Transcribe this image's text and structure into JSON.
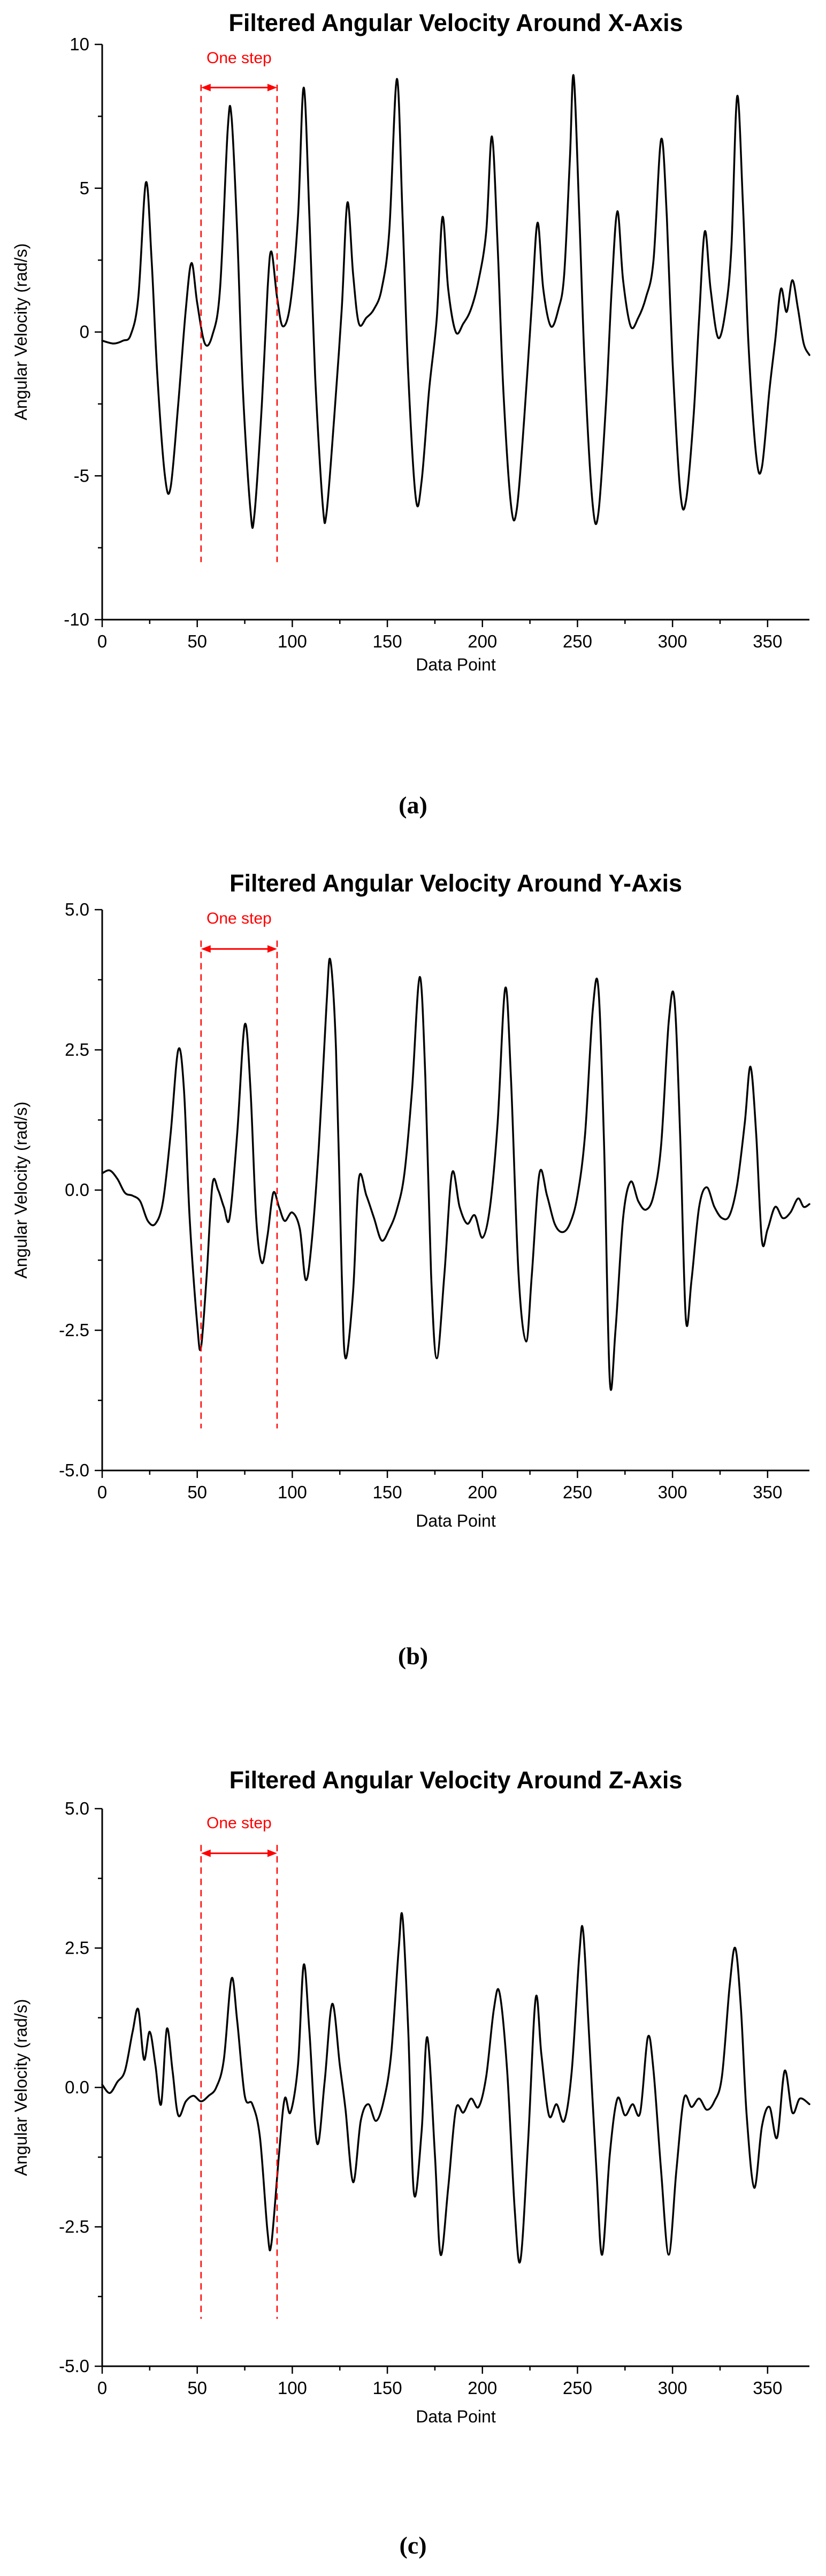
{
  "page": {
    "background": "#ffffff"
  },
  "colors": {
    "line": "#000000",
    "annotation": "#ff0000",
    "axis": "#000000"
  },
  "figures": [
    {
      "caption": "(a)"
    },
    {
      "caption": "(b)"
    },
    {
      "caption": "(c)"
    }
  ],
  "chart_data": [
    {
      "type": "line",
      "title": "Filtered Angular Velocity Around X-Axis",
      "xlabel": "Data Point",
      "ylabel": "Angular Velocity (rad/s)",
      "xlim": [
        0,
        372
      ],
      "ylim": [
        -10,
        10
      ],
      "xticks": [
        0,
        50,
        100,
        150,
        200,
        250,
        300,
        350
      ],
      "yticks": [
        -10,
        -5,
        0,
        5,
        10
      ],
      "ytick_labels": [
        "-10",
        "-5",
        "0",
        "5",
        "10"
      ],
      "line_color": "#000000",
      "annotation": {
        "label": "One step",
        "x_start": 52,
        "x_end": 92,
        "arrow_y": 8.5,
        "label_y": 9.35,
        "line_top": 8.6,
        "line_bottom": -8.0,
        "color": "#ff0000"
      },
      "points": [
        [
          0,
          -0.3
        ],
        [
          6,
          -0.4
        ],
        [
          11,
          -0.3
        ],
        [
          15,
          -0.1
        ],
        [
          19,
          1.2
        ],
        [
          23,
          5.2
        ],
        [
          26,
          2.5
        ],
        [
          29,
          -1.5
        ],
        [
          33,
          -5.0
        ],
        [
          36,
          -5.4
        ],
        [
          40,
          -2.5
        ],
        [
          44,
          0.8
        ],
        [
          47,
          2.4
        ],
        [
          50,
          1.0
        ],
        [
          54,
          -0.4
        ],
        [
          58,
          -0.1
        ],
        [
          62,
          1.5
        ],
        [
          66,
          7.0
        ],
        [
          68,
          7.5
        ],
        [
          71,
          3.5
        ],
        [
          74,
          -2.0
        ],
        [
          78,
          -6.2
        ],
        [
          80,
          -6.4
        ],
        [
          84,
          -2.5
        ],
        [
          87,
          1.5
        ],
        [
          89,
          2.8
        ],
        [
          92,
          1.2
        ],
        [
          95,
          0.2
        ],
        [
          99,
          1.0
        ],
        [
          103,
          4.0
        ],
        [
          106,
          8.5
        ],
        [
          109,
          4.0
        ],
        [
          112,
          -1.5
        ],
        [
          116,
          -6.0
        ],
        [
          118,
          -6.3
        ],
        [
          122,
          -3.0
        ],
        [
          126,
          0.8
        ],
        [
          129,
          4.5
        ],
        [
          132,
          2.0
        ],
        [
          135,
          0.3
        ],
        [
          139,
          0.5
        ],
        [
          143,
          0.8
        ],
        [
          147,
          1.5
        ],
        [
          151,
          3.5
        ],
        [
          155,
          8.8
        ],
        [
          158,
          4.0
        ],
        [
          161,
          -1.5
        ],
        [
          165,
          -5.8
        ],
        [
          168,
          -5.2
        ],
        [
          172,
          -2.0
        ],
        [
          176,
          0.5
        ],
        [
          179,
          4.0
        ],
        [
          182,
          1.5
        ],
        [
          186,
          0.0
        ],
        [
          190,
          0.3
        ],
        [
          194,
          0.8
        ],
        [
          198,
          1.8
        ],
        [
          202,
          3.5
        ],
        [
          205,
          6.8
        ],
        [
          208,
          3.0
        ],
        [
          211,
          -2.0
        ],
        [
          215,
          -6.0
        ],
        [
          218,
          -6.2
        ],
        [
          222,
          -3.0
        ],
        [
          226,
          1.0
        ],
        [
          229,
          3.8
        ],
        [
          232,
          1.5
        ],
        [
          236,
          0.2
        ],
        [
          240,
          0.8
        ],
        [
          243,
          2.0
        ],
        [
          246,
          6.0
        ],
        [
          248,
          8.9
        ],
        [
          251,
          4.0
        ],
        [
          254,
          -1.5
        ],
        [
          258,
          -6.0
        ],
        [
          261,
          -6.3
        ],
        [
          265,
          -2.5
        ],
        [
          268,
          1.5
        ],
        [
          271,
          4.2
        ],
        [
          274,
          1.8
        ],
        [
          278,
          0.2
        ],
        [
          282,
          0.5
        ],
        [
          286,
          1.2
        ],
        [
          290,
          2.5
        ],
        [
          294,
          6.7
        ],
        [
          297,
          4.0
        ],
        [
          300,
          -1.0
        ],
        [
          304,
          -5.5
        ],
        [
          307,
          -5.9
        ],
        [
          311,
          -3.0
        ],
        [
          314,
          0.5
        ],
        [
          317,
          3.5
        ],
        [
          320,
          1.5
        ],
        [
          324,
          -0.2
        ],
        [
          328,
          0.8
        ],
        [
          331,
          3.0
        ],
        [
          334,
          8.2
        ],
        [
          337,
          4.5
        ],
        [
          340,
          -0.5
        ],
        [
          344,
          -4.3
        ],
        [
          347,
          -4.7
        ],
        [
          351,
          -2.0
        ],
        [
          354,
          -0.3
        ],
        [
          357,
          1.5
        ],
        [
          360,
          0.7
        ],
        [
          363,
          1.8
        ],
        [
          366,
          0.8
        ],
        [
          369,
          -0.4
        ],
        [
          372,
          -0.8
        ]
      ]
    },
    {
      "type": "line",
      "title": "Filtered Angular Velocity Around Y-Axis",
      "xlabel": "Data Point",
      "ylabel": "Angular Velocity (rad/s)",
      "xlim": [
        0,
        372
      ],
      "ylim": [
        -5,
        5
      ],
      "xticks": [
        0,
        50,
        100,
        150,
        200,
        250,
        300,
        350
      ],
      "yticks": [
        -5,
        -2.5,
        0,
        2.5,
        5
      ],
      "ytick_labels": [
        "-5.0",
        "-2.5",
        "0.0",
        "2.5",
        "5.0"
      ],
      "line_color": "#000000",
      "annotation": {
        "label": "One step",
        "x_start": 52,
        "x_end": 92,
        "arrow_y": 4.3,
        "label_y": 4.75,
        "line_top": 4.45,
        "line_bottom": -4.25,
        "color": "#ff0000"
      },
      "points": [
        [
          0,
          0.3
        ],
        [
          4,
          0.35
        ],
        [
          8,
          0.2
        ],
        [
          12,
          -0.05
        ],
        [
          16,
          -0.1
        ],
        [
          20,
          -0.2
        ],
        [
          24,
          -0.55
        ],
        [
          28,
          -0.6
        ],
        [
          32,
          -0.2
        ],
        [
          36,
          1.0
        ],
        [
          40,
          2.5
        ],
        [
          43,
          1.8
        ],
        [
          46,
          -0.5
        ],
        [
          50,
          -2.4
        ],
        [
          52,
          -2.8
        ],
        [
          55,
          -1.5
        ],
        [
          58,
          0.1
        ],
        [
          61,
          0.0
        ],
        [
          64,
          -0.3
        ],
        [
          67,
          -0.5
        ],
        [
          71,
          1.0
        ],
        [
          75,
          2.95
        ],
        [
          78,
          1.8
        ],
        [
          81,
          -0.5
        ],
        [
          84,
          -1.3
        ],
        [
          87,
          -0.8
        ],
        [
          90,
          -0.05
        ],
        [
          93,
          -0.3
        ],
        [
          96,
          -0.55
        ],
        [
          100,
          -0.4
        ],
        [
          104,
          -0.7
        ],
        [
          107,
          -1.6
        ],
        [
          110,
          -1.0
        ],
        [
          114,
          0.8
        ],
        [
          118,
          3.3
        ],
        [
          120,
          4.1
        ],
        [
          123,
          2.5
        ],
        [
          126,
          -1.5
        ],
        [
          128,
          -3.0
        ],
        [
          132,
          -1.8
        ],
        [
          135,
          0.2
        ],
        [
          139,
          -0.1
        ],
        [
          143,
          -0.5
        ],
        [
          147,
          -0.9
        ],
        [
          151,
          -0.7
        ],
        [
          155,
          -0.35
        ],
        [
          159,
          0.3
        ],
        [
          163,
          1.8
        ],
        [
          167,
          3.8
        ],
        [
          170,
          2.0
        ],
        [
          173,
          -1.5
        ],
        [
          176,
          -3.0
        ],
        [
          180,
          -1.5
        ],
        [
          184,
          0.3
        ],
        [
          188,
          -0.3
        ],
        [
          192,
          -0.6
        ],
        [
          196,
          -0.45
        ],
        [
          200,
          -0.85
        ],
        [
          204,
          -0.3
        ],
        [
          208,
          1.2
        ],
        [
          212,
          3.6
        ],
        [
          215,
          2.0
        ],
        [
          219,
          -1.5
        ],
        [
          223,
          -2.7
        ],
        [
          226,
          -1.5
        ],
        [
          230,
          0.3
        ],
        [
          234,
          -0.1
        ],
        [
          238,
          -0.6
        ],
        [
          242,
          -0.75
        ],
        [
          246,
          -0.6
        ],
        [
          250,
          -0.1
        ],
        [
          254,
          1.0
        ],
        [
          258,
          3.2
        ],
        [
          261,
          3.6
        ],
        [
          264,
          0.8
        ],
        [
          267,
          -3.4
        ],
        [
          270,
          -2.5
        ],
        [
          274,
          -0.5
        ],
        [
          278,
          0.15
        ],
        [
          282,
          -0.2
        ],
        [
          286,
          -0.35
        ],
        [
          290,
          -0.1
        ],
        [
          294,
          0.8
        ],
        [
          298,
          3.0
        ],
        [
          301,
          3.4
        ],
        [
          304,
          1.0
        ],
        [
          307,
          -2.3
        ],
        [
          310,
          -1.6
        ],
        [
          314,
          -0.3
        ],
        [
          318,
          0.05
        ],
        [
          322,
          -0.3
        ],
        [
          326,
          -0.5
        ],
        [
          330,
          -0.45
        ],
        [
          334,
          0.1
        ],
        [
          338,
          1.2
        ],
        [
          341,
          2.2
        ],
        [
          344,
          1.0
        ],
        [
          347,
          -0.9
        ],
        [
          350,
          -0.7
        ],
        [
          354,
          -0.3
        ],
        [
          358,
          -0.5
        ],
        [
          362,
          -0.4
        ],
        [
          366,
          -0.15
        ],
        [
          369,
          -0.3
        ],
        [
          372,
          -0.25
        ]
      ]
    },
    {
      "type": "line",
      "title": "Filtered Angular Velocity Around Z-Axis",
      "xlabel": "Data Point",
      "ylabel": "Angular Velocity (rad/s)",
      "xlim": [
        0,
        372
      ],
      "ylim": [
        -5,
        5
      ],
      "xticks": [
        0,
        50,
        100,
        150,
        200,
        250,
        300,
        350
      ],
      "yticks": [
        -5,
        -2.5,
        0,
        2.5,
        5
      ],
      "ytick_labels": [
        "-5.0",
        "-2.5",
        "0.0",
        "2.5",
        "5.0"
      ],
      "line_color": "#000000",
      "annotation": {
        "label": "One step",
        "x_start": 52,
        "x_end": 92,
        "arrow_y": 4.2,
        "label_y": 4.65,
        "line_top": 4.35,
        "line_bottom": -4.15,
        "color": "#ff0000"
      },
      "points": [
        [
          0,
          0.05
        ],
        [
          4,
          -0.1
        ],
        [
          8,
          0.1
        ],
        [
          12,
          0.3
        ],
        [
          16,
          1.0
        ],
        [
          19,
          1.4
        ],
        [
          22,
          0.5
        ],
        [
          25,
          1.0
        ],
        [
          28,
          0.4
        ],
        [
          31,
          -0.3
        ],
        [
          34,
          1.05
        ],
        [
          37,
          0.3
        ],
        [
          40,
          -0.5
        ],
        [
          44,
          -0.25
        ],
        [
          48,
          -0.15
        ],
        [
          52,
          -0.25
        ],
        [
          56,
          -0.15
        ],
        [
          60,
          0.0
        ],
        [
          64,
          0.5
        ],
        [
          68,
          1.95
        ],
        [
          71,
          1.2
        ],
        [
          75,
          -0.15
        ],
        [
          79,
          -0.3
        ],
        [
          83,
          -0.9
        ],
        [
          87,
          -2.6
        ],
        [
          89,
          -2.8
        ],
        [
          93,
          -1.2
        ],
        [
          96,
          -0.2
        ],
        [
          99,
          -0.45
        ],
        [
          103,
          0.4
        ],
        [
          106,
          2.2
        ],
        [
          109,
          1.0
        ],
        [
          113,
          -1.0
        ],
        [
          117,
          0.1
        ],
        [
          121,
          1.5
        ],
        [
          125,
          0.4
        ],
        [
          128,
          -0.4
        ],
        [
          132,
          -1.7
        ],
        [
          136,
          -0.6
        ],
        [
          140,
          -0.3
        ],
        [
          144,
          -0.6
        ],
        [
          148,
          -0.25
        ],
        [
          152,
          0.6
        ],
        [
          156,
          2.5
        ],
        [
          158,
          3.05
        ],
        [
          161,
          1.0
        ],
        [
          164,
          -1.9
        ],
        [
          168,
          -0.8
        ],
        [
          171,
          0.9
        ],
        [
          175,
          -1.2
        ],
        [
          178,
          -3.0
        ],
        [
          182,
          -1.8
        ],
        [
          186,
          -0.4
        ],
        [
          190,
          -0.45
        ],
        [
          194,
          -0.2
        ],
        [
          198,
          -0.35
        ],
        [
          202,
          0.2
        ],
        [
          206,
          1.4
        ],
        [
          209,
          1.7
        ],
        [
          213,
          0.3
        ],
        [
          217,
          -2.2
        ],
        [
          220,
          -3.1
        ],
        [
          224,
          -1.0
        ],
        [
          228,
          1.6
        ],
        [
          231,
          0.6
        ],
        [
          235,
          -0.5
        ],
        [
          239,
          -0.3
        ],
        [
          243,
          -0.6
        ],
        [
          247,
          0.3
        ],
        [
          251,
          2.4
        ],
        [
          253,
          2.8
        ],
        [
          256,
          1.0
        ],
        [
          260,
          -1.5
        ],
        [
          263,
          -3.0
        ],
        [
          267,
          -1.2
        ],
        [
          271,
          -0.2
        ],
        [
          275,
          -0.5
        ],
        [
          279,
          -0.3
        ],
        [
          283,
          -0.45
        ],
        [
          287,
          0.9
        ],
        [
          290,
          0.3
        ],
        [
          294,
          -1.5
        ],
        [
          298,
          -3.0
        ],
        [
          302,
          -1.5
        ],
        [
          306,
          -0.2
        ],
        [
          310,
          -0.35
        ],
        [
          314,
          -0.2
        ],
        [
          318,
          -0.4
        ],
        [
          322,
          -0.25
        ],
        [
          326,
          0.2
        ],
        [
          330,
          1.8
        ],
        [
          333,
          2.5
        ],
        [
          336,
          1.4
        ],
        [
          339,
          -0.5
        ],
        [
          343,
          -1.8
        ],
        [
          347,
          -0.7
        ],
        [
          351,
          -0.35
        ],
        [
          355,
          -0.9
        ],
        [
          359,
          0.3
        ],
        [
          363,
          -0.45
        ],
        [
          367,
          -0.2
        ],
        [
          372,
          -0.3
        ]
      ]
    }
  ]
}
